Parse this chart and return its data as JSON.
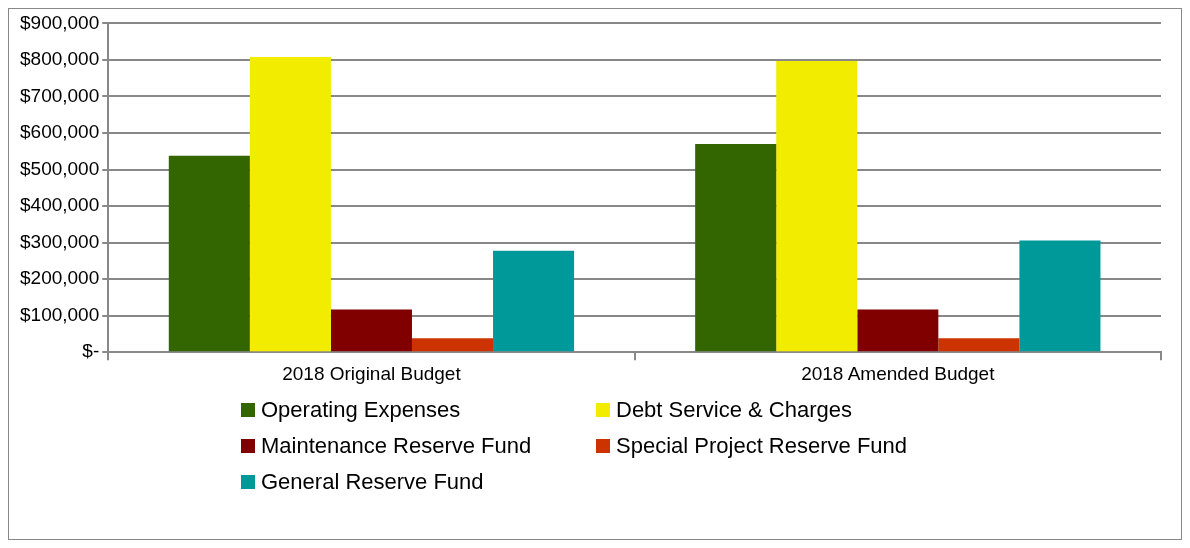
{
  "chart_data": {
    "type": "bar",
    "categories": [
      "2018 Original Budget",
      "2018 Amended Budget"
    ],
    "series": [
      {
        "name": "Operating Expenses",
        "color": "#336600",
        "values": [
          538000,
          570000
        ]
      },
      {
        "name": "Debt Service & Charges",
        "color": "#f2ec00",
        "values": [
          808000,
          797000
        ]
      },
      {
        "name": "Maintenance Reserve Fund",
        "color": "#800000",
        "values": [
          117000,
          117000
        ]
      },
      {
        "name": "Special Project Reserve Fund",
        "color": "#cc3300",
        "values": [
          38000,
          38000
        ]
      },
      {
        "name": "General Reserve Fund",
        "color": "#009999",
        "values": [
          278000,
          306000
        ]
      }
    ],
    "ylim": [
      0,
      900000
    ],
    "yticks": [
      {
        "value": 0,
        "label": "$-"
      },
      {
        "value": 100000,
        "label": "$100,000"
      },
      {
        "value": 200000,
        "label": "$200,000"
      },
      {
        "value": 300000,
        "label": "$300,000"
      },
      {
        "value": 400000,
        "label": "$400,000"
      },
      {
        "value": 500000,
        "label": "$500,000"
      },
      {
        "value": 600000,
        "label": "$600,000"
      },
      {
        "value": 700000,
        "label": "$700,000"
      },
      {
        "value": 800000,
        "label": "$800,000"
      },
      {
        "value": 900000,
        "label": "$900,000"
      }
    ],
    "grid": "y",
    "legend": "bottom"
  }
}
